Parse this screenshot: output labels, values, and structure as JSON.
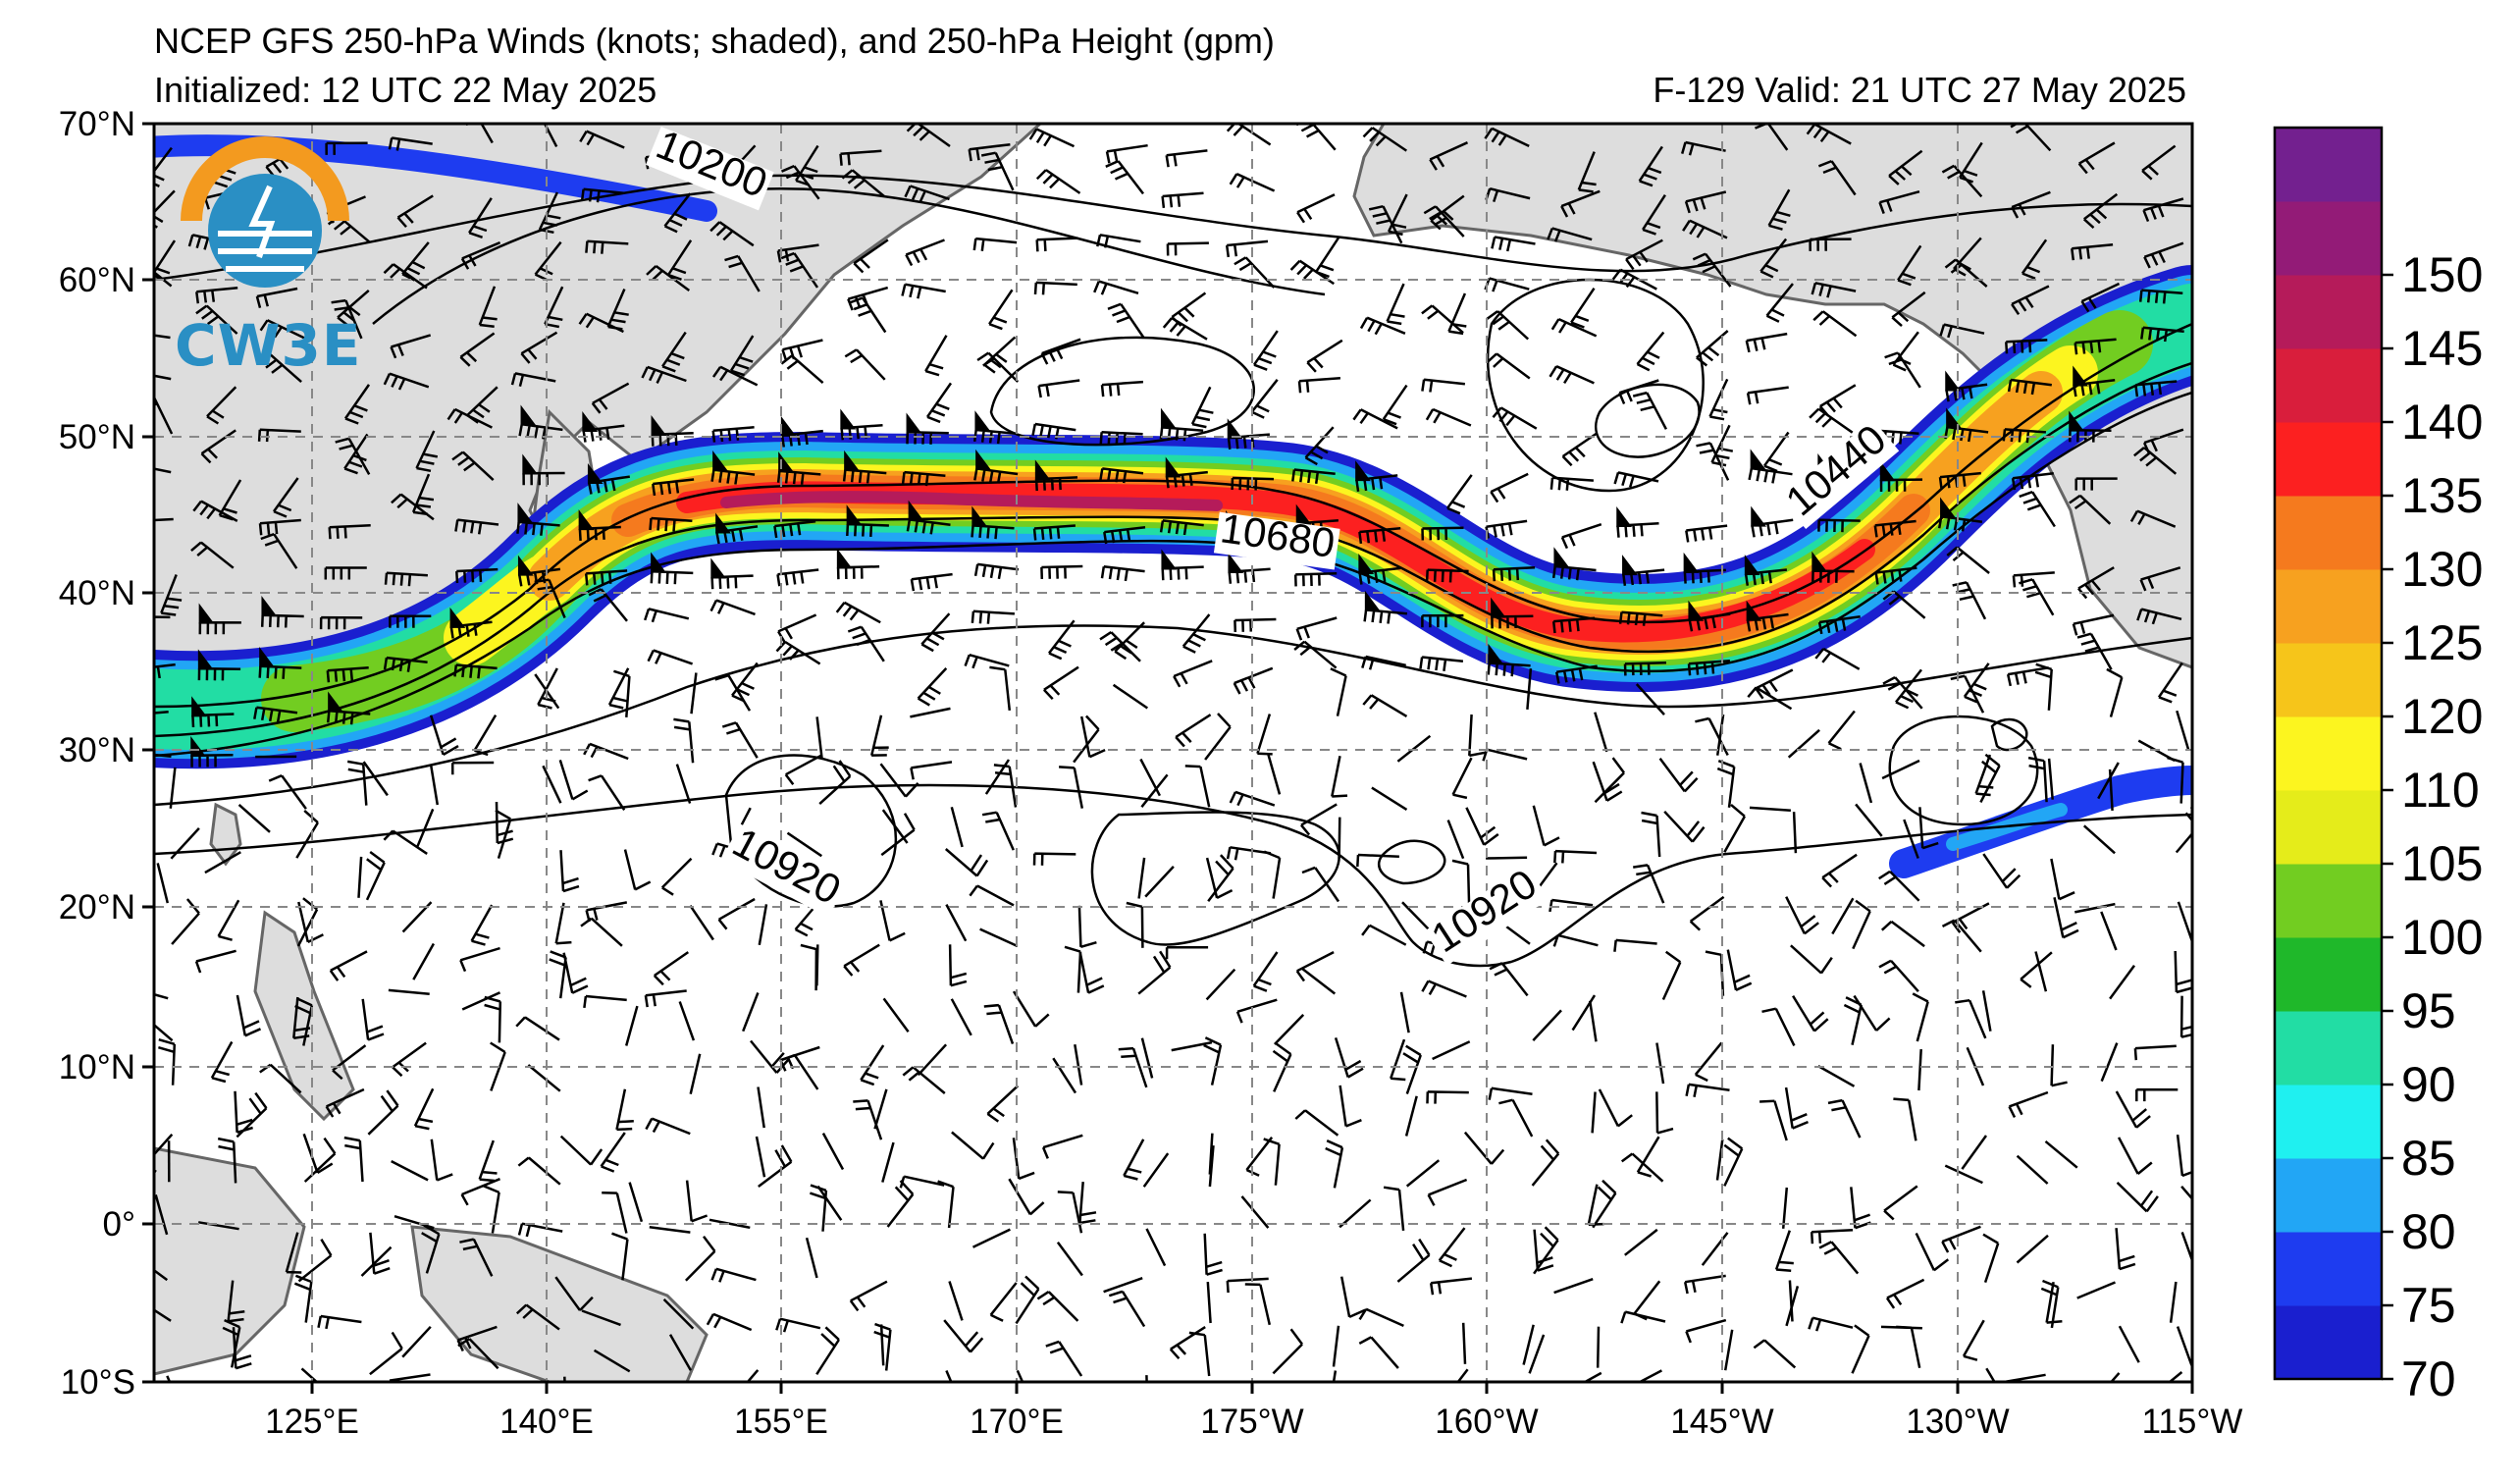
{
  "title": {
    "main": "NCEP GFS 250-hPa Winds (knots; shaded), and 250-hPa Height (gpm)",
    "initialized": "Initialized: 12 UTC 22 May 2025",
    "valid": "F-129  Valid: 21 UTC 27 May 2025"
  },
  "logo": {
    "text": "CW3E",
    "icon": "cw3e-logo-icon"
  },
  "axes": {
    "lat_ticks": [
      "70°N",
      "60°N",
      "50°N",
      "40°N",
      "30°N",
      "20°N",
      "10°N",
      "0°",
      "10°S"
    ],
    "lon_ticks": [
      "125°E",
      "140°E",
      "155°E",
      "170°E",
      "175°W",
      "160°W",
      "145°W",
      "130°W",
      "115°W"
    ]
  },
  "contour_labels": [
    "10200",
    "10680",
    "10440",
    "10920",
    "10920"
  ],
  "colorbar": {
    "levels": [
      "70",
      "75",
      "80",
      "85",
      "90",
      "95",
      "100",
      "105",
      "110",
      "120",
      "125",
      "130",
      "135",
      "140",
      "145",
      "150"
    ],
    "colors": [
      "#1a1fcf",
      "#1e3cf0",
      "#22a6f5",
      "#1ff0f0",
      "#22dda4",
      "#1fb82a",
      "#72cd21",
      "#e5ec1a",
      "#fcf51f",
      "#f6c51a",
      "#f7a11f",
      "#f57a1e",
      "#fc2020",
      "#d91e3c",
      "#b51b5a",
      "#931b77",
      "#73208f"
    ]
  }
}
